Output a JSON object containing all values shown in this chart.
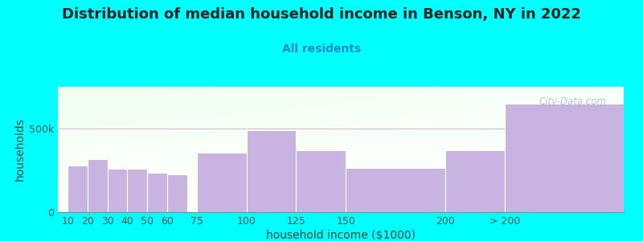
{
  "title": "Distribution of median household income in Benson, NY in 2022",
  "subtitle": "All residents",
  "xlabel": "household income ($1000)",
  "ylabel": "households",
  "background_color": "#00ffff",
  "bar_color": "#c8b4e0",
  "bar_edge_color": "#ffffff",
  "categories": [
    "10",
    "20",
    "30",
    "40",
    "50",
    "60",
    "75",
    "100",
    "125",
    "150",
    "200",
    "> 200"
  ],
  "values": [
    280000,
    315000,
    262000,
    258000,
    235000,
    225000,
    355000,
    490000,
    370000,
    265000,
    370000,
    650000
  ],
  "positions": [
    10,
    20,
    30,
    40,
    50,
    60,
    75,
    87,
    100,
    112,
    125,
    150,
    200,
    230
  ],
  "bar_left": [
    10,
    20,
    30,
    40,
    50,
    60,
    75,
    100,
    125,
    150,
    200,
    230
  ],
  "bar_widths": [
    10,
    10,
    10,
    10,
    10,
    10,
    25,
    25,
    25,
    50,
    30,
    60
  ],
  "xlim": [
    5,
    290
  ],
  "ylim": [
    0,
    750000
  ],
  "ytick_labels": [
    "0",
    "500k"
  ],
  "ytick_vals": [
    0,
    500000
  ],
  "gridline_y": 500000,
  "title_fontsize": 13,
  "subtitle_fontsize": 10,
  "axis_label_fontsize": 10,
  "tick_fontsize": 9,
  "watermark_text": "City-Data.com",
  "watermark_color": "#aabfc5",
  "xtick_positions": [
    10,
    20,
    30,
    40,
    50,
    60,
    75,
    100,
    125,
    150,
    200,
    230
  ],
  "xtick_labels": [
    "10",
    "20",
    "30",
    "40",
    "50",
    "60",
    "75",
    "100",
    "125",
    "150",
    "200",
    "> 200"
  ]
}
